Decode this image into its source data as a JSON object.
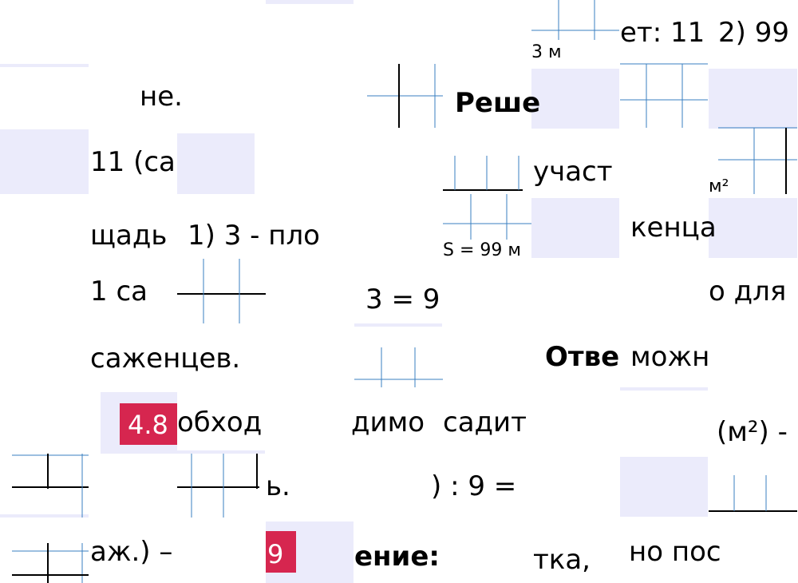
{
  "fragments": [
    "3 м",
    "ет: 11",
    "2) 99",
    "не.",
    "Реше",
    "11 (са",
    "участ",
    "м²",
    "щадь",
    "1) 3 - пло",
    "S = 99 м",
    "кенца",
    "1 са",
    "3 = 9",
    "о для",
    "саженцев.",
    "Отве",
    "можн",
    "обход",
    "димо",
    "садит",
    "(м²) -",
    "ь.",
    ") : 9 =",
    "аж.) –",
    "ение:",
    "тка,",
    "но пос"
  ],
  "badges": [
    "4.8",
    "9"
  ]
}
